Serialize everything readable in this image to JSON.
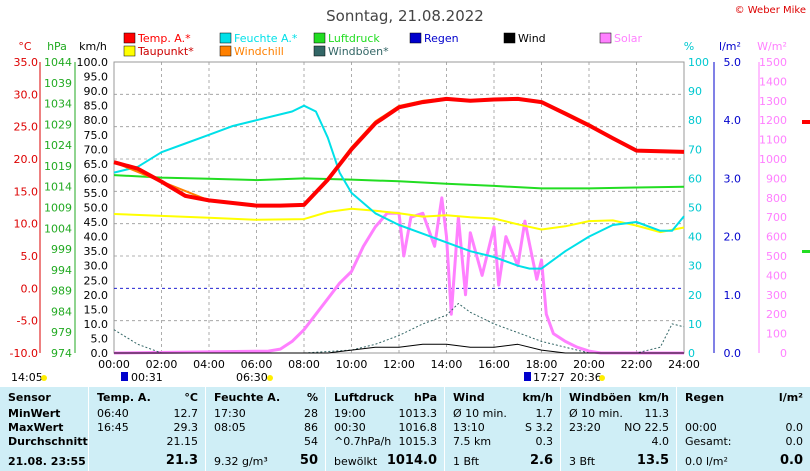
{
  "title": "Sonntag, 21.08.2022",
  "credit": "© Weber Mike",
  "axis_units": {
    "celsius": "°C",
    "hpa": "hPa",
    "kmh": "km/h",
    "percent": "%",
    "lm2": "l/m²",
    "wm2": "W/m²"
  },
  "legend": [
    {
      "label": "Temp. A.*",
      "color": "#ff0000"
    },
    {
      "label": "Feuchte A.*",
      "color": "#00e0e8"
    },
    {
      "label": "Luftdruck",
      "color": "#22dd22"
    },
    {
      "label": "Regen",
      "color": "#0000cc"
    },
    {
      "label": "Wind",
      "color": "#000000"
    },
    {
      "label": "Solar",
      "color": "#ff80ff"
    },
    {
      "label": "Taupunkt*",
      "color": "#ffff00"
    },
    {
      "label": "Windchill",
      "color": "#ff8000"
    },
    {
      "label": "Windböen*",
      "color": "#336666"
    }
  ],
  "sun_times": {
    "sunrise_range": "06:30",
    "sunset_range": "20:36",
    "sunrise": "00:31",
    "moon_rise": "17:27",
    "left_time": "14:05"
  },
  "chart_data": {
    "type": "line",
    "x_ticks": [
      "00:00",
      "02:00",
      "04:00",
      "06:00",
      "08:00",
      "10:00",
      "12:00",
      "14:00",
      "16:00",
      "18:00",
      "20:00",
      "22:00",
      "24:00"
    ],
    "y_axes": {
      "celsius": [
        35.0,
        30.0,
        25.0,
        20.0,
        15.0,
        10.0,
        5.0,
        0.0,
        -5.0,
        -10.0
      ],
      "hpa": [
        1044,
        1039,
        1034,
        1029,
        1024,
        1019,
        1014,
        1009,
        1004,
        999,
        994,
        989,
        984,
        979,
        974
      ],
      "kmh": [
        100.0,
        95.0,
        90.0,
        85.0,
        80.0,
        75.0,
        70.0,
        65.0,
        60.0,
        55.0,
        50.0,
        45.0,
        40.0,
        35.0,
        30.0,
        25.0,
        20.0,
        15.0,
        10.0,
        5.0,
        0.0
      ],
      "percent": [
        100,
        90,
        80,
        70,
        60,
        50,
        40,
        30,
        20,
        10,
        0
      ],
      "lm2": [
        5.0,
        4.0,
        3.0,
        2.0,
        1.0,
        0.0
      ],
      "wm2": [
        1500,
        1400,
        1300,
        1200,
        1100,
        1000,
        900,
        800,
        700,
        600,
        500,
        400,
        300,
        200,
        100,
        0
      ]
    },
    "xlim": [
      0,
      24
    ],
    "series": [
      {
        "name": "Temp. A.*",
        "axis": "celsius",
        "color": "#ff0000",
        "x": [
          0,
          1,
          2,
          3,
          4,
          5,
          6,
          7,
          8,
          9,
          10,
          11,
          12,
          13,
          14,
          15,
          16,
          17,
          18,
          19,
          20,
          21,
          22,
          23,
          24
        ],
        "y": [
          19.5,
          18.5,
          16.5,
          14.3,
          13.6,
          13.2,
          12.8,
          12.8,
          12.9,
          16.8,
          21.5,
          25.5,
          28.0,
          28.8,
          29.3,
          29.0,
          29.2,
          29.3,
          28.8,
          27.0,
          25.2,
          23.2,
          21.3,
          21.2,
          21.1
        ]
      },
      {
        "name": "Windchill",
        "axis": "celsius",
        "color": "#ff8000",
        "x": [
          0,
          2,
          4,
          6,
          8,
          9,
          10,
          11,
          12,
          13,
          14,
          15,
          16,
          17,
          18,
          19,
          20,
          21,
          22,
          23,
          24
        ],
        "y": [
          19.5,
          16.5,
          13.6,
          12.8,
          12.9,
          17.0,
          21.8,
          25.8,
          28.2,
          29.0,
          29.4,
          29.1,
          29.3,
          29.4,
          28.9,
          27.2,
          25.4,
          23.3,
          21.3,
          21.2,
          21.1
        ]
      },
      {
        "name": "Taupunkt*",
        "axis": "celsius",
        "color": "#ffff00",
        "x": [
          0,
          2,
          4,
          6,
          8,
          9,
          10,
          11,
          12,
          13,
          14,
          15,
          16,
          17,
          18,
          19,
          20,
          21,
          22,
          23,
          24
        ],
        "y": [
          11.5,
          11.2,
          10.9,
          10.6,
          10.7,
          11.8,
          12.3,
          12.0,
          11.6,
          11.1,
          11.3,
          11.0,
          10.8,
          9.9,
          9.1,
          9.6,
          10.4,
          10.5,
          9.7,
          8.7,
          9.4
        ]
      },
      {
        "name": "Feuchte A.*",
        "axis": "percent",
        "color": "#00e0e8",
        "x": [
          0,
          1,
          2,
          3,
          4,
          5,
          6,
          7,
          7.5,
          8,
          8.5,
          9,
          9.5,
          10,
          11,
          12,
          13,
          14,
          15,
          16,
          17,
          17.5,
          18,
          19,
          20,
          21,
          22,
          23,
          23.5,
          24
        ],
        "y": [
          62,
          64,
          69,
          72,
          75,
          78,
          80,
          82,
          83,
          85,
          83,
          74,
          62,
          55,
          48,
          44,
          41,
          38,
          35,
          33,
          30,
          29,
          29,
          35,
          40,
          44,
          45,
          42,
          42,
          47
        ]
      },
      {
        "name": "Luftdruck",
        "axis": "hpa",
        "color": "#22dd22",
        "x": [
          0,
          2,
          4,
          6,
          8,
          10,
          12,
          14,
          16,
          18,
          20,
          22,
          24
        ],
        "y": [
          1016.8,
          1016.2,
          1015.9,
          1015.6,
          1016.0,
          1015.7,
          1015.3,
          1014.7,
          1014.2,
          1013.6,
          1013.6,
          1013.8,
          1014.0
        ]
      },
      {
        "name": "Solar",
        "axis": "wm2",
        "color": "#ff80ff",
        "x": [
          0,
          6.5,
          7,
          7.5,
          8,
          8.5,
          9,
          9.5,
          10,
          10.5,
          11,
          11.5,
          12,
          12.2,
          12.5,
          13,
          13.5,
          13.8,
          14,
          14.2,
          14.5,
          14.8,
          15,
          15.5,
          16,
          16.2,
          16.5,
          17,
          17.3,
          17.5,
          17.8,
          18,
          18.2,
          18.5,
          19,
          19.5,
          20,
          20.5,
          24
        ],
        "y": [
          0,
          10,
          20,
          60,
          120,
          200,
          280,
          360,
          420,
          550,
          650,
          720,
          720,
          500,
          700,
          720,
          550,
          800,
          600,
          200,
          700,
          300,
          620,
          400,
          650,
          350,
          600,
          450,
          680,
          560,
          380,
          480,
          200,
          100,
          60,
          30,
          10,
          0,
          0
        ]
      },
      {
        "name": "Windböen*",
        "axis": "kmh",
        "color": "#336666",
        "x": [
          0,
          1,
          2,
          4,
          6,
          8,
          10,
          11,
          12,
          13,
          14,
          14.5,
          15,
          16,
          17,
          18,
          19,
          20,
          21,
          22,
          23,
          23.5,
          24
        ],
        "y": [
          8,
          3,
          0,
          0,
          0,
          0,
          1,
          3,
          6,
          10,
          13,
          17,
          14,
          10,
          7,
          4,
          2,
          0,
          0,
          0,
          2,
          10,
          9
        ]
      },
      {
        "name": "Wind",
        "axis": "kmh",
        "color": "#000000",
        "x": [
          0,
          9,
          10,
          11,
          12,
          13,
          14,
          15,
          16,
          17,
          18,
          19,
          24
        ],
        "y": [
          0,
          0,
          1,
          2,
          2,
          3,
          3,
          2,
          2,
          3,
          1,
          0,
          0
        ]
      }
    ]
  },
  "stats": {
    "columns": [
      {
        "header": "Sensor",
        "header2": "",
        "rows": [
          "MinWert",
          "MaxWert",
          "Durchschnitt"
        ],
        "rows_b": [
          "",
          "",
          ""
        ],
        "footer": "21.08. 23:55",
        "footer2": ""
      },
      {
        "header": "Temp. A.",
        "header2": "°C",
        "rows": [
          "06:40",
          "16:45",
          ""
        ],
        "rows_b": [
          "12.7",
          "29.3",
          "21.15"
        ],
        "footer": "",
        "footer2": "21.3"
      },
      {
        "header": "Feuchte A.",
        "header2": "%",
        "rows": [
          "17:30",
          "08:05",
          ""
        ],
        "rows_b": [
          "28",
          "86",
          "54"
        ],
        "footer": "9.32 g/m³",
        "footer2": "50"
      },
      {
        "header": "Luftdruck",
        "header2": "hPa",
        "rows": [
          "19:00",
          "00:30",
          "^0.7hPa/h"
        ],
        "rows_b": [
          "1013.3",
          "1016.8",
          "1015.3"
        ],
        "footer": "bewölkt",
        "footer2": "1014.0"
      },
      {
        "header": "Wind",
        "header2": "km/h",
        "rows": [
          "Ø 10 min.",
          "13:10",
          "7.5 km"
        ],
        "rows_b": [
          "1.7",
          "S 3.2",
          "0.3"
        ],
        "footer": "1 Bft",
        "footer2": "2.6"
      },
      {
        "header": "Windböen",
        "header2": "km/h",
        "rows": [
          "Ø 10 min.",
          "23:20",
          ""
        ],
        "rows_b": [
          "11.3",
          "NO 22.5",
          "4.0"
        ],
        "footer": "3 Bft",
        "footer2": "13.5"
      },
      {
        "header": "Regen",
        "header2": "l/m²",
        "rows": [
          "",
          "00:00",
          "Gesamt:"
        ],
        "rows_b": [
          "",
          "0.0",
          "0.0"
        ],
        "footer": "0.0 l/m²",
        "footer2": "0.0"
      }
    ]
  }
}
